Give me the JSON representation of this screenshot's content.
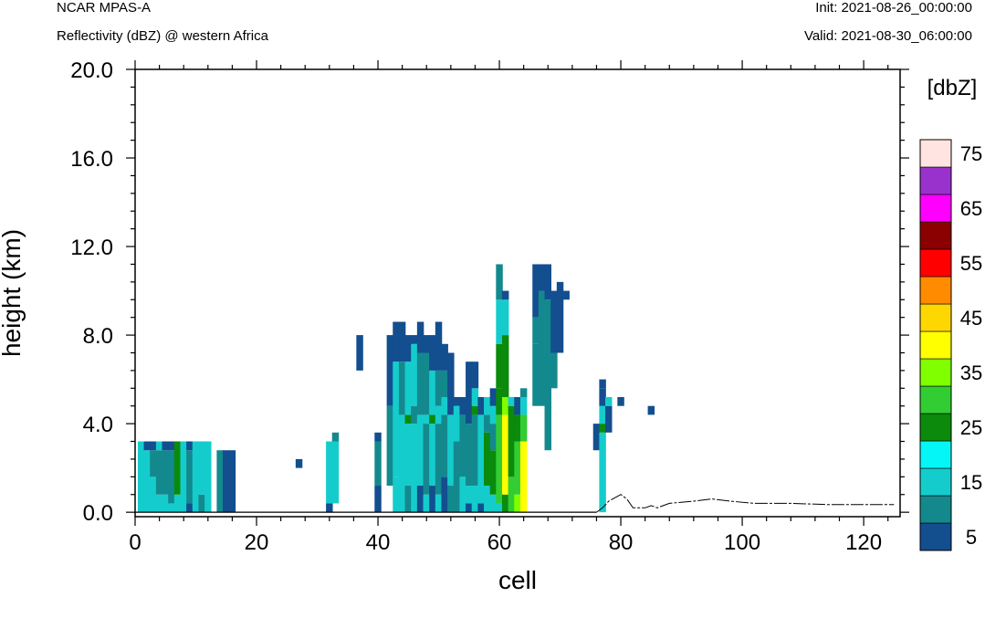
{
  "header": {
    "model": "NCAR MPAS-A",
    "field": "Reflectivity (dBZ) @ western Africa",
    "init": "Init: 2021-08-26_00:00:00",
    "valid": "Valid: 2021-08-30_06:00:00"
  },
  "chart_data": {
    "type": "heatmap",
    "xlabel": "cell",
    "ylabel": "height (km)",
    "xlim": [
      0,
      126
    ],
    "ylim": [
      -0.2,
      20
    ],
    "xticks": [
      0,
      20,
      40,
      60,
      80,
      100,
      120
    ],
    "yticks": [
      0,
      4,
      8,
      12,
      16,
      20
    ],
    "ytick_labels": [
      "0.0",
      "4.0",
      "8.0",
      "12.0",
      "16.0",
      "20.0"
    ],
    "dz": 0.4,
    "colorbar": {
      "unit_label": "[dbZ]",
      "levels": [
        5,
        10,
        15,
        20,
        25,
        30,
        35,
        40,
        45,
        50,
        55,
        60,
        65,
        70,
        75
      ],
      "tick_labels": [
        "5",
        "15",
        "25",
        "35",
        "45",
        "55",
        "65",
        "75"
      ],
      "colors": [
        "#134e8f",
        "#13898e",
        "#15cccc",
        "#04f6f6",
        "#0b8a0b",
        "#32cd32",
        "#7fff00",
        "#ffff00",
        "#ffd700",
        "#ff8c00",
        "#ff0000",
        "#8b0000",
        "#ff00ff",
        "#9932cc",
        "#ffe4e1"
      ]
    },
    "columns": [
      {
        "x": 1,
        "segs": [
          [
            0,
            3.2,
            15
          ]
        ]
      },
      {
        "x": 2,
        "segs": [
          [
            0,
            2.8,
            15
          ],
          [
            2.8,
            3.2,
            5
          ]
        ]
      },
      {
        "x": 3,
        "segs": [
          [
            0,
            1.6,
            15
          ],
          [
            1.6,
            2.8,
            10
          ],
          [
            2.8,
            3.2,
            5
          ]
        ]
      },
      {
        "x": 4,
        "segs": [
          [
            0,
            0.8,
            15
          ],
          [
            0.8,
            2.8,
            10
          ],
          [
            2.8,
            3.2,
            15
          ]
        ]
      },
      {
        "x": 5,
        "segs": [
          [
            0,
            0.8,
            15
          ],
          [
            0.8,
            2.8,
            10
          ],
          [
            2.8,
            3.2,
            5
          ]
        ]
      },
      {
        "x": 6,
        "segs": [
          [
            0,
            0.4,
            15
          ],
          [
            0.4,
            2.8,
            10
          ],
          [
            2.8,
            3.2,
            5
          ]
        ]
      },
      {
        "x": 7,
        "segs": [
          [
            0,
            0.8,
            15
          ],
          [
            0.8,
            3.2,
            25
          ]
        ]
      },
      {
        "x": 8,
        "segs": [
          [
            0,
            3.2,
            15
          ]
        ]
      },
      {
        "x": 9,
        "segs": [
          [
            0,
            0.4,
            5
          ],
          [
            0.4,
            2.8,
            10
          ],
          [
            2.8,
            3.2,
            5
          ]
        ]
      },
      {
        "x": 10,
        "segs": [
          [
            0,
            3.2,
            15
          ]
        ]
      },
      {
        "x": 11,
        "segs": [
          [
            0,
            0.8,
            10
          ],
          [
            0.8,
            3.2,
            15
          ]
        ]
      },
      {
        "x": 12,
        "segs": [
          [
            0,
            3.2,
            15
          ]
        ]
      },
      {
        "x": 14,
        "segs": [
          [
            0,
            2.8,
            10
          ],
          [
            2.8,
            2.8,
            5
          ]
        ]
      },
      {
        "x": 15,
        "segs": [
          [
            0,
            2.8,
            5
          ]
        ]
      },
      {
        "x": 16,
        "segs": [
          [
            0,
            2.8,
            5
          ]
        ]
      },
      {
        "x": 27,
        "segs": [
          [
            2.0,
            2.4,
            5
          ]
        ]
      },
      {
        "x": 32,
        "segs": [
          [
            0,
            0.4,
            5
          ],
          [
            0.4,
            3.2,
            15
          ]
        ]
      },
      {
        "x": 33,
        "segs": [
          [
            0.4,
            3.2,
            15
          ],
          [
            3.2,
            3.6,
            10
          ]
        ]
      },
      {
        "x": 37,
        "segs": [
          [
            6.4,
            8.0,
            5
          ]
        ]
      },
      {
        "x": 40,
        "segs": [
          [
            0,
            1.2,
            5
          ],
          [
            1.2,
            3.2,
            10
          ],
          [
            3.2,
            3.6,
            5
          ]
        ]
      },
      {
        "x": 42,
        "segs": [
          [
            1.2,
            4.8,
            10
          ],
          [
            4.8,
            8.0,
            5
          ]
        ]
      },
      {
        "x": 43,
        "segs": [
          [
            0,
            1.6,
            15
          ],
          [
            1.6,
            6.8,
            15
          ],
          [
            6.8,
            8.6,
            5
          ]
        ]
      },
      {
        "x": 44,
        "segs": [
          [
            0,
            4.4,
            15
          ],
          [
            4.4,
            6.8,
            10
          ],
          [
            6.8,
            8.6,
            5
          ]
        ]
      },
      {
        "x": 45,
        "segs": [
          [
            0,
            1.2,
            10
          ],
          [
            1.2,
            4.0,
            15
          ],
          [
            4.0,
            4.4,
            25
          ],
          [
            4.4,
            6.8,
            15
          ],
          [
            6.8,
            8.0,
            5
          ]
        ]
      },
      {
        "x": 46,
        "segs": [
          [
            0,
            4.0,
            15
          ],
          [
            4.0,
            4.8,
            10
          ],
          [
            4.8,
            7.6,
            15
          ],
          [
            7.6,
            8.0,
            5
          ]
        ]
      },
      {
        "x": 47,
        "segs": [
          [
            0,
            1.2,
            5
          ],
          [
            1.2,
            4.4,
            15
          ],
          [
            4.4,
            7.2,
            10
          ],
          [
            7.2,
            8.6,
            5
          ]
        ]
      },
      {
        "x": 48,
        "segs": [
          [
            0,
            0.8,
            15
          ],
          [
            0.8,
            4.0,
            10
          ],
          [
            4.0,
            4.4,
            15
          ],
          [
            4.4,
            7.2,
            10
          ],
          [
            7.2,
            8.0,
            5
          ]
        ]
      },
      {
        "x": 49,
        "segs": [
          [
            0,
            1.2,
            5
          ],
          [
            1.2,
            4.0,
            15
          ],
          [
            4.0,
            4.4,
            25
          ],
          [
            4.4,
            6.4,
            15
          ],
          [
            6.4,
            8.0,
            5
          ]
        ]
      },
      {
        "x": 50,
        "segs": [
          [
            0,
            0.8,
            15
          ],
          [
            0.8,
            4.0,
            10
          ],
          [
            4.0,
            4.8,
            15
          ],
          [
            4.8,
            6.4,
            10
          ],
          [
            6.4,
            8.6,
            5
          ]
        ]
      },
      {
        "x": 51,
        "segs": [
          [
            0,
            1.6,
            5
          ],
          [
            1.6,
            4.4,
            10
          ],
          [
            4.4,
            5.2,
            15
          ],
          [
            5.2,
            6.4,
            10
          ],
          [
            6.4,
            7.6,
            5
          ]
        ]
      },
      {
        "x": 52,
        "segs": [
          [
            0,
            1.2,
            10
          ],
          [
            1.2,
            4.4,
            15
          ],
          [
            4.4,
            5.2,
            5
          ],
          [
            5.2,
            7.2,
            5
          ]
        ]
      },
      {
        "x": 53,
        "segs": [
          [
            0,
            3.2,
            10
          ],
          [
            3.2,
            4.8,
            15
          ],
          [
            4.8,
            5.2,
            5
          ]
        ]
      },
      {
        "x": 54,
        "segs": [
          [
            0,
            1.6,
            15
          ],
          [
            1.6,
            4.4,
            10
          ],
          [
            4.4,
            5.2,
            5
          ]
        ]
      },
      {
        "x": 55,
        "segs": [
          [
            0,
            0.4,
            5
          ],
          [
            0.4,
            1.2,
            15
          ],
          [
            1.2,
            4.0,
            10
          ],
          [
            4.0,
            6.8,
            5
          ]
        ]
      },
      {
        "x": 56,
        "segs": [
          [
            0,
            1.2,
            15
          ],
          [
            1.2,
            4.4,
            10
          ],
          [
            4.4,
            4.8,
            25
          ],
          [
            4.8,
            5.6,
            15
          ],
          [
            5.6,
            6.8,
            5
          ]
        ]
      },
      {
        "x": 57,
        "segs": [
          [
            0,
            0.4,
            5
          ],
          [
            0.4,
            4.4,
            15
          ],
          [
            4.4,
            5.2,
            5
          ]
        ]
      },
      {
        "x": 58,
        "segs": [
          [
            0,
            1.2,
            15
          ],
          [
            1.2,
            3.6,
            25
          ],
          [
            3.6,
            4.4,
            10
          ],
          [
            4.4,
            5.2,
            15
          ]
        ]
      },
      {
        "x": 59,
        "segs": [
          [
            0,
            0.8,
            15
          ],
          [
            0.8,
            2.8,
            25
          ],
          [
            2.8,
            4.0,
            10
          ],
          [
            4.0,
            4.8,
            15
          ],
          [
            4.8,
            5.6,
            5
          ]
        ]
      },
      {
        "x": 60,
        "segs": [
          [
            0,
            0.4,
            15
          ],
          [
            0.4,
            4.4,
            30
          ],
          [
            4.4,
            5.6,
            25
          ],
          [
            5.6,
            7.6,
            25
          ],
          [
            7.6,
            9.6,
            15
          ],
          [
            9.6,
            11.2,
            10
          ]
        ]
      },
      {
        "x": 61,
        "segs": [
          [
            0,
            0.8,
            25
          ],
          [
            0.8,
            4.4,
            40
          ],
          [
            4.4,
            5.2,
            35
          ],
          [
            5.2,
            8.0,
            25
          ],
          [
            8.0,
            9.6,
            15
          ],
          [
            9.6,
            10.0,
            5
          ]
        ]
      },
      {
        "x": 62,
        "segs": [
          [
            0,
            1.6,
            30
          ],
          [
            1.6,
            4.8,
            25
          ],
          [
            4.8,
            5.2,
            15
          ]
        ]
      },
      {
        "x": 63,
        "segs": [
          [
            0,
            0.8,
            35
          ],
          [
            0.8,
            3.2,
            30
          ],
          [
            3.2,
            4.4,
            25
          ],
          [
            4.4,
            5.2,
            5
          ]
        ]
      },
      {
        "x": 64,
        "segs": [
          [
            0,
            3.2,
            40
          ],
          [
            3.2,
            4.4,
            30
          ],
          [
            4.4,
            5.2,
            15
          ],
          [
            5.2,
            5.6,
            10
          ]
        ]
      },
      {
        "x": 66,
        "segs": [
          [
            4.8,
            7.6,
            10
          ],
          [
            7.6,
            8.8,
            10
          ],
          [
            8.8,
            11.2,
            5
          ]
        ]
      },
      {
        "x": 67,
        "segs": [
          [
            4.8,
            10.0,
            10
          ],
          [
            10.0,
            11.2,
            5
          ]
        ]
      },
      {
        "x": 68,
        "segs": [
          [
            2.8,
            9.6,
            10
          ],
          [
            9.6,
            11.2,
            5
          ]
        ]
      },
      {
        "x": 69,
        "segs": [
          [
            5.6,
            7.2,
            10
          ],
          [
            7.2,
            10.0,
            5
          ]
        ]
      },
      {
        "x": 70,
        "segs": [
          [
            7.2,
            10.4,
            5
          ]
        ]
      },
      {
        "x": 71,
        "segs": [
          [
            9.6,
            10.0,
            5
          ]
        ]
      },
      {
        "x": 76,
        "segs": [
          [
            2.8,
            4.0,
            5
          ]
        ]
      },
      {
        "x": 77,
        "segs": [
          [
            0,
            3.6,
            15
          ],
          [
            3.6,
            4.0,
            25
          ],
          [
            4.0,
            4.8,
            15
          ],
          [
            4.8,
            5.6,
            5
          ],
          [
            5.6,
            6.0,
            5
          ]
        ]
      },
      {
        "x": 78,
        "segs": [
          [
            3.6,
            4.8,
            5
          ],
          [
            4.8,
            5.2,
            15
          ]
        ]
      },
      {
        "x": 80,
        "segs": [
          [
            4.8,
            5.2,
            5
          ]
        ]
      },
      {
        "x": 85,
        "segs": [
          [
            4.4,
            4.8,
            5
          ]
        ]
      }
    ],
    "terrain": [
      [
        76,
        0
      ],
      [
        77,
        0.2
      ],
      [
        78,
        0.5
      ],
      [
        80,
        0.8
      ],
      [
        81,
        0.6
      ],
      [
        82,
        0.2
      ],
      [
        84,
        0.2
      ],
      [
        85,
        0.3
      ],
      [
        86,
        0.2
      ],
      [
        88,
        0.4
      ],
      [
        92,
        0.5
      ],
      [
        95,
        0.6
      ],
      [
        98,
        0.5
      ],
      [
        102,
        0.4
      ],
      [
        108,
        0.4
      ],
      [
        114,
        0.35
      ],
      [
        120,
        0.35
      ],
      [
        125,
        0.35
      ]
    ]
  }
}
